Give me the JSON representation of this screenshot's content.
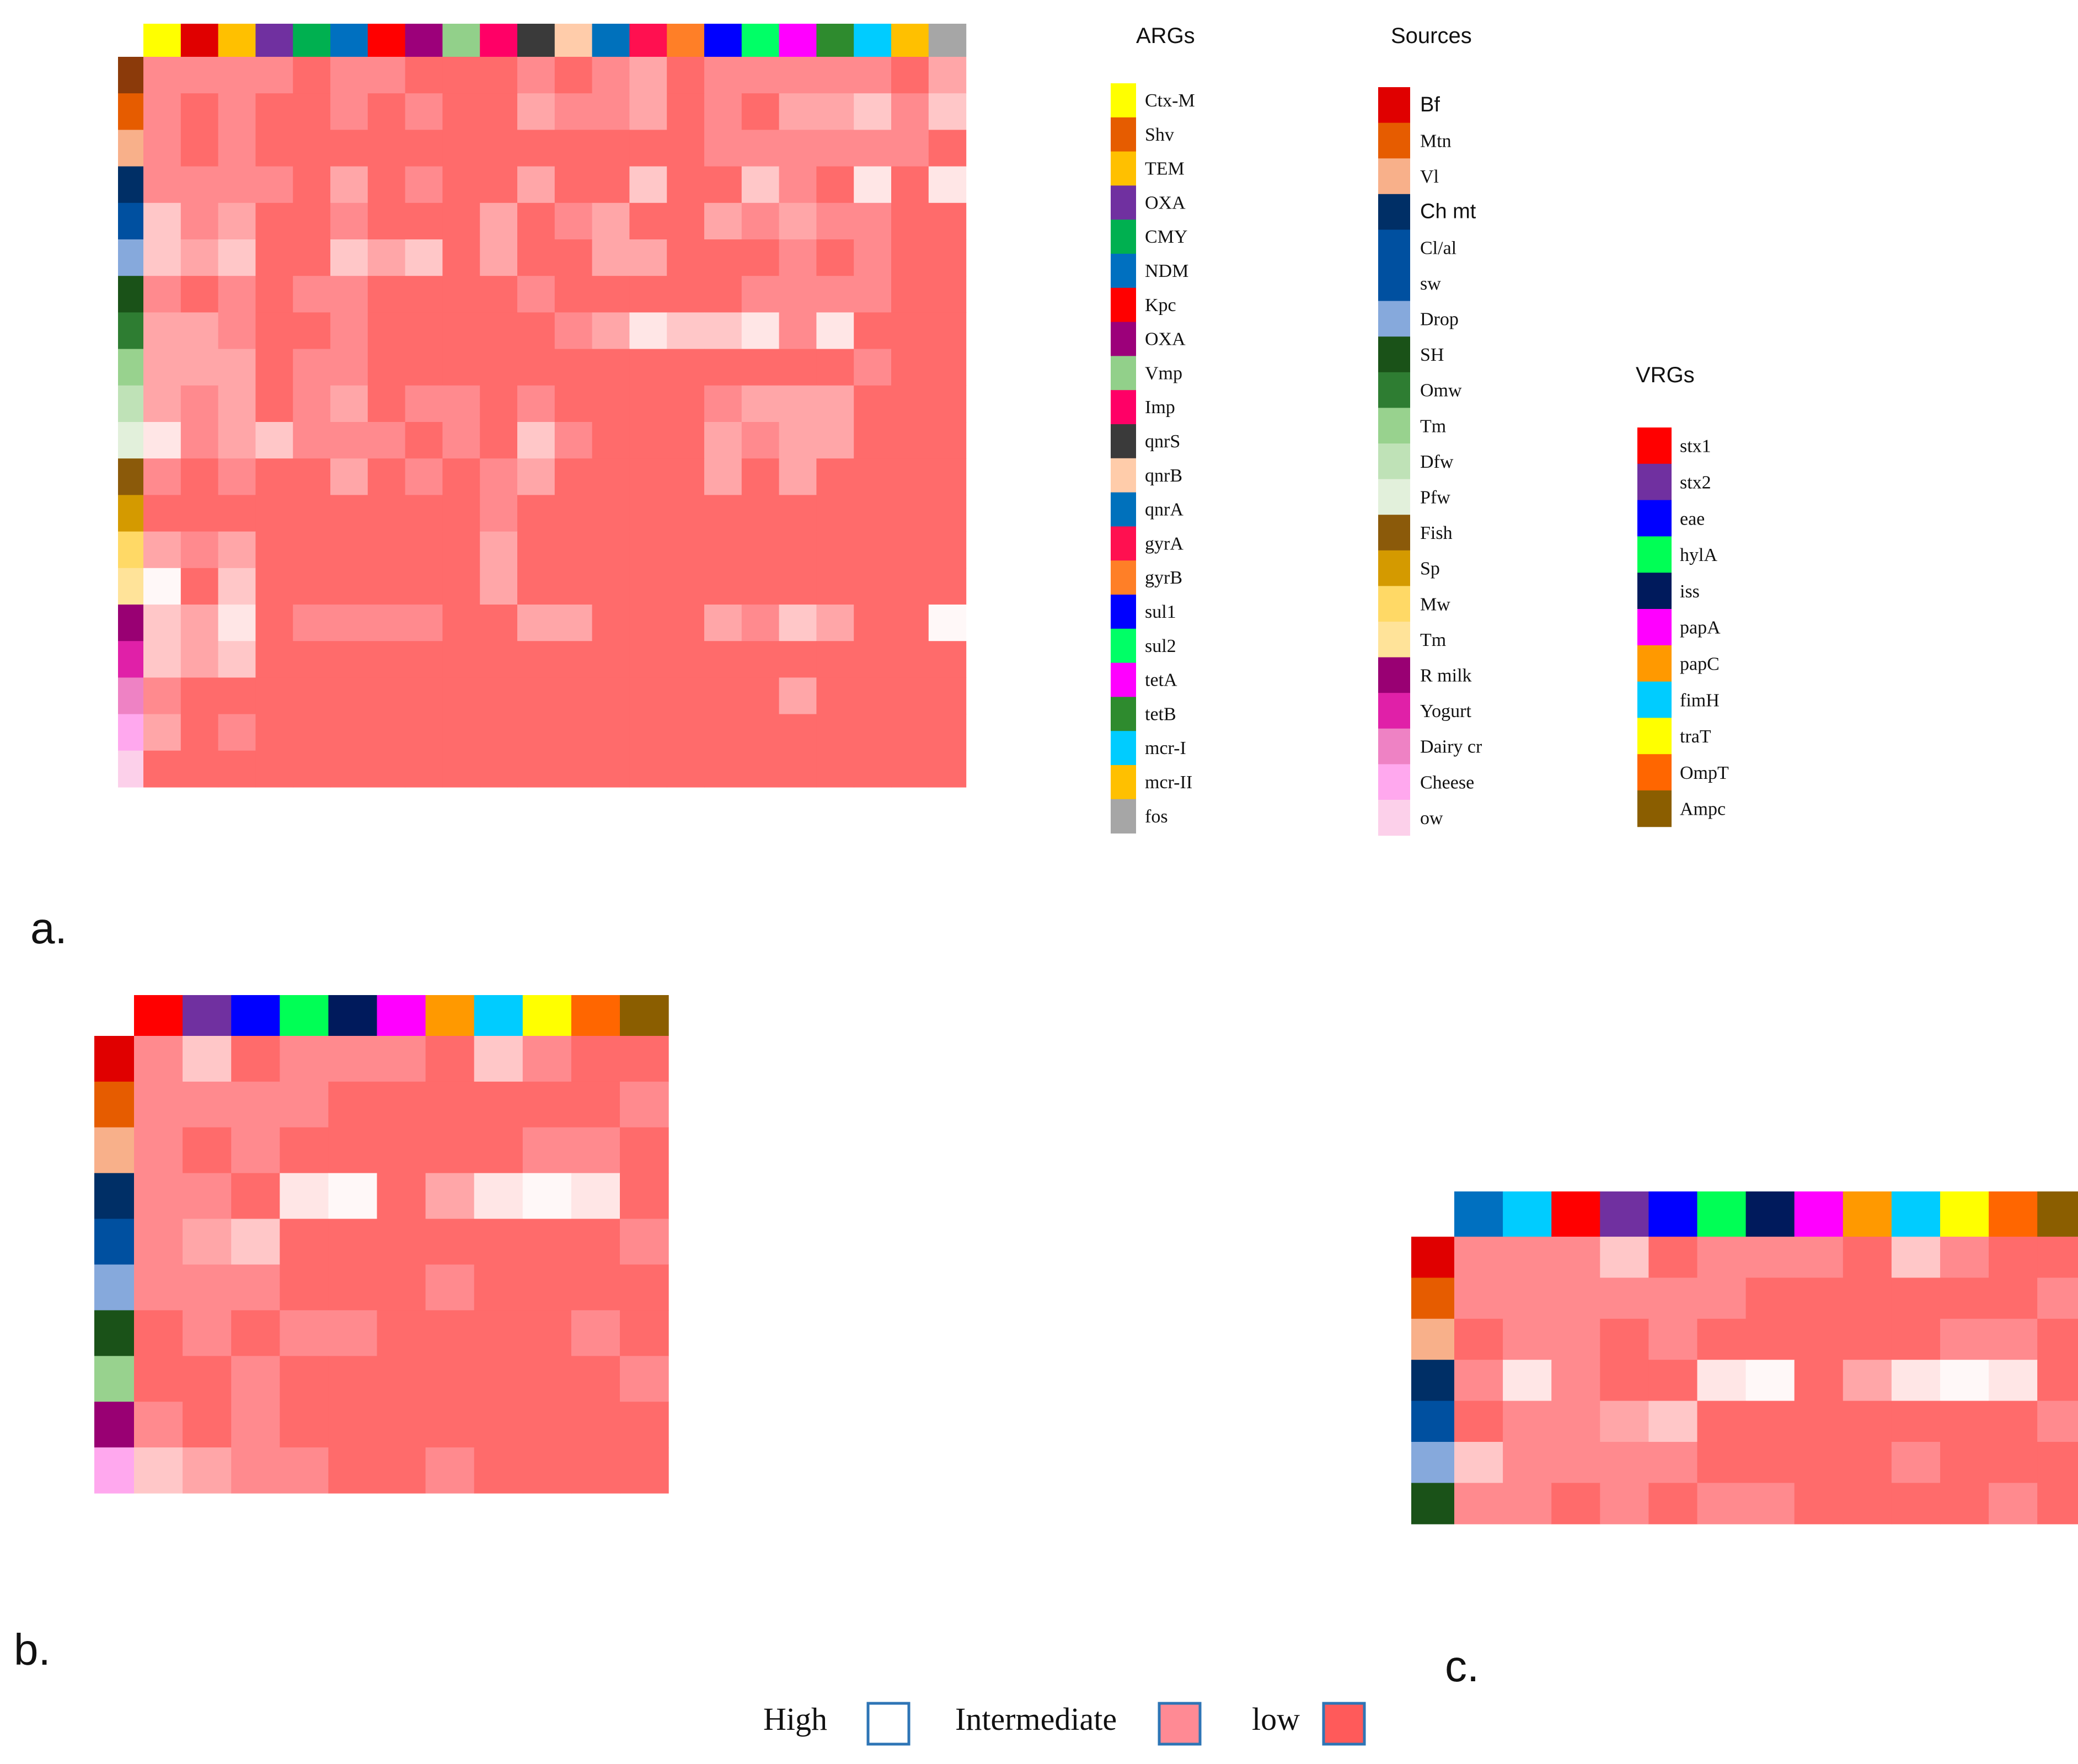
{
  "legends": {
    "args": {
      "title": "ARGs",
      "items": [
        {
          "label": "Ctx-M",
          "color": "#FFFF00"
        },
        {
          "label": "Shv",
          "color": "#E65C00"
        },
        {
          "label": "TEM",
          "color": "#FFC000"
        },
        {
          "label": "OXA",
          "color": "#7030A0"
        },
        {
          "label": "CMY",
          "color": "#00B050"
        },
        {
          "label": "NDM",
          "color": "#0070C0"
        },
        {
          "label": "Kpc",
          "color": "#FF0000"
        },
        {
          "label": "OXA",
          "color": "#9C007A"
        },
        {
          "label": "Vmp",
          "color": "#92D08A"
        },
        {
          "label": "Imp",
          "color": "#FF0066"
        },
        {
          "label": "qnrS",
          "color": "#3A3A3A"
        },
        {
          "label": "qnrB",
          "color": "#FFCCAA"
        },
        {
          "label": "qnrA",
          "color": "#0071BC"
        },
        {
          "label": "gyrA",
          "color": "#FF1050"
        },
        {
          "label": "gyrB",
          "color": "#FF7F27"
        },
        {
          "label": "sul1",
          "color": "#0000FF"
        },
        {
          "label": "sul2",
          "color": "#00FF66"
        },
        {
          "label": "tetA",
          "color": "#FF00FF"
        },
        {
          "label": "tetB",
          "color": "#2E8B2E"
        },
        {
          "label": "mcr-I",
          "color": "#00CCFF"
        },
        {
          "label": "mcr-II",
          "color": "#FFC000"
        },
        {
          "label": "fos",
          "color": "#A6A6A6"
        }
      ]
    },
    "sources": {
      "title": "Sources",
      "items": [
        {
          "label": "Bf",
          "color": "#E00000",
          "font": "sans"
        },
        {
          "label": "Mtn",
          "color": "#E65C00"
        },
        {
          "label": "Vl",
          "color": "#F8B08A"
        },
        {
          "label": "Ch mt",
          "color": "#002F66",
          "font": "sans"
        },
        {
          "label": "Cl/al",
          "color": "#0050A0"
        },
        {
          "label": "sw",
          "color": "#0050A0"
        },
        {
          "label": "Drop",
          "color": "#86A9DC"
        },
        {
          "label": "SH",
          "color": "#1A5218"
        },
        {
          "label": "Omw",
          "color": "#2E7D32"
        },
        {
          "label": "Tm",
          "color": "#98D28E"
        },
        {
          "label": "Dfw",
          "color": "#BFE2B7"
        },
        {
          "label": "Pfw",
          "color": "#E2F0DB"
        },
        {
          "label": "Fish",
          "color": "#8B5A0A"
        },
        {
          "label": "Sp",
          "color": "#D49A00"
        },
        {
          "label": "Mw",
          "color": "#FFD966"
        },
        {
          "label": "Tm",
          "color": "#FFE399"
        },
        {
          "label": "R milk",
          "color": "#990073"
        },
        {
          "label": "Yogurt",
          "color": "#E020A8"
        },
        {
          "label": "Dairy cr",
          "color": "#EE82C4"
        },
        {
          "label": "Cheese",
          "color": "#FFA8EE"
        },
        {
          "label": "ow",
          "color": "#FCD0EA"
        }
      ]
    },
    "vrgs": {
      "title": "VRGs",
      "items": [
        {
          "label": "stx1",
          "color": "#FF0000"
        },
        {
          "label": "stx2",
          "color": "#7030A0"
        },
        {
          "label": "eae",
          "color": "#0000FF"
        },
        {
          "label": "hylA",
          "color": "#00FF55"
        },
        {
          "label": "iss",
          "color": "#001A5C"
        },
        {
          "label": "papA",
          "color": "#FF00FF"
        },
        {
          "label": "papC",
          "color": "#FF9900"
        },
        {
          "label": "fimH",
          "color": "#00CCFF"
        },
        {
          "label": "traT",
          "color": "#FFFF00"
        },
        {
          "label": "OmpT",
          "color": "#FF6600"
        },
        {
          "label": "Ampc",
          "color": "#8B5E00"
        }
      ]
    }
  },
  "panel_labels": {
    "a": "a.",
    "b": "b.",
    "c": "c."
  },
  "key": {
    "items": [
      {
        "label": "High",
        "fill": "#FFFFFF"
      },
      {
        "label": "Intermediate",
        "fill": "#FF8A94"
      },
      {
        "label": "low",
        "fill": "#FF5A5A"
      }
    ],
    "border": "#2E75B6"
  },
  "chart_data": [
    {
      "id": "a",
      "type": "heatmap",
      "levels": {
        "0": "#FF6B6B",
        "1": "#FF8A8E",
        "2": "#FFA6A8",
        "3": "#FFC7C8",
        "4": "#FFE6E6",
        "5": "#FFF8F8"
      },
      "col_colors": [
        "#FFFF00",
        "#E00000",
        "#FFC000",
        "#7030A0",
        "#00B050",
        "#0070C0",
        "#FF0000",
        "#9C007A",
        "#92D08A",
        "#FF0066",
        "#3A3A3A",
        "#FFCCAA",
        "#0071BC",
        "#FF1050",
        "#FF7F27",
        "#0000FF",
        "#00FF66",
        "#FF00FF",
        "#2E8B2E",
        "#00CCFF",
        "#FFC000",
        "#A6A6A6"
      ],
      "row_colors": [
        "#8B3A0A",
        "#E65C00",
        "#F8B08A",
        "#002F66",
        "#0050A0",
        "#86A9DC",
        "#1A5218",
        "#2E7D32",
        "#98D28E",
        "#BFE2B7",
        "#E2F0DB",
        "#8B5A0A",
        "#D49A00",
        "#FFD966",
        "#FFE399",
        "#990073",
        "#E020A8",
        "#EE82C4",
        "#FFA8EE",
        "#FCD0EA"
      ],
      "values": [
        [
          1,
          1,
          1,
          1,
          0,
          1,
          1,
          0,
          0,
          0,
          1,
          0,
          1,
          2,
          0,
          1,
          1,
          1,
          1,
          1,
          0,
          2
        ],
        [
          1,
          0,
          1,
          0,
          0,
          1,
          0,
          1,
          0,
          0,
          2,
          1,
          1,
          2,
          0,
          1,
          0,
          2,
          2,
          3,
          1,
          3
        ],
        [
          1,
          0,
          1,
          0,
          0,
          0,
          0,
          0,
          0,
          0,
          0,
          0,
          0,
          0,
          0,
          1,
          1,
          1,
          1,
          1,
          1,
          0
        ],
        [
          1,
          1,
          1,
          1,
          0,
          2,
          0,
          1,
          0,
          0,
          2,
          0,
          0,
          3,
          0,
          0,
          3,
          1,
          0,
          4,
          0,
          4
        ],
        [
          3,
          1,
          2,
          0,
          0,
          1,
          0,
          0,
          0,
          2,
          0,
          1,
          2,
          0,
          0,
          2,
          1,
          2,
          1,
          1,
          0,
          0
        ],
        [
          3,
          2,
          3,
          0,
          0,
          3,
          2,
          3,
          0,
          2,
          0,
          0,
          2,
          2,
          0,
          0,
          0,
          1,
          0,
          1,
          0,
          0
        ],
        [
          1,
          0,
          1,
          0,
          1,
          1,
          0,
          0,
          0,
          0,
          1,
          0,
          0,
          0,
          0,
          0,
          1,
          1,
          1,
          1,
          0,
          0
        ],
        [
          2,
          2,
          1,
          0,
          0,
          1,
          0,
          0,
          0,
          0,
          0,
          1,
          2,
          4,
          3,
          3,
          4,
          1,
          4,
          0,
          0,
          0
        ],
        [
          2,
          2,
          2,
          0,
          1,
          1,
          0,
          0,
          0,
          0,
          0,
          0,
          0,
          0,
          0,
          0,
          0,
          0,
          0,
          1,
          0,
          0
        ],
        [
          2,
          1,
          2,
          0,
          1,
          2,
          0,
          1,
          1,
          0,
          1,
          0,
          0,
          0,
          0,
          1,
          2,
          2,
          2,
          0,
          0,
          0
        ],
        [
          4,
          1,
          2,
          3,
          1,
          1,
          1,
          0,
          1,
          0,
          3,
          1,
          0,
          0,
          0,
          2,
          1,
          2,
          2,
          0,
          0,
          0
        ],
        [
          1,
          0,
          1,
          0,
          0,
          2,
          0,
          1,
          0,
          1,
          2,
          0,
          0,
          0,
          0,
          2,
          0,
          2,
          0,
          0,
          0,
          0
        ],
        [
          0,
          0,
          0,
          0,
          0,
          0,
          0,
          0,
          0,
          1,
          0,
          0,
          0,
          0,
          0,
          0,
          0,
          0,
          0,
          0,
          0,
          0
        ],
        [
          2,
          1,
          2,
          0,
          0,
          0,
          0,
          0,
          0,
          2,
          0,
          0,
          0,
          0,
          0,
          0,
          0,
          0,
          0,
          0,
          0,
          0
        ],
        [
          5,
          0,
          3,
          0,
          0,
          0,
          0,
          0,
          0,
          2,
          0,
          0,
          0,
          0,
          0,
          0,
          0,
          0,
          0,
          0,
          0,
          0
        ],
        [
          3,
          2,
          4,
          0,
          1,
          1,
          1,
          1,
          0,
          0,
          2,
          2,
          0,
          0,
          0,
          2,
          1,
          3,
          2,
          0,
          0,
          5
        ],
        [
          3,
          2,
          3,
          0,
          0,
          0,
          0,
          0,
          0,
          0,
          0,
          0,
          0,
          0,
          0,
          0,
          0,
          0,
          0,
          0,
          0,
          0
        ],
        [
          1,
          0,
          0,
          0,
          0,
          0,
          0,
          0,
          0,
          0,
          0,
          0,
          0,
          0,
          0,
          0,
          0,
          2,
          0,
          0,
          0,
          0
        ],
        [
          2,
          0,
          1,
          0,
          0,
          0,
          0,
          0,
          0,
          0,
          0,
          0,
          0,
          0,
          0,
          0,
          0,
          0,
          0,
          0,
          0,
          0
        ],
        [
          0,
          0,
          0,
          0,
          0,
          0,
          0,
          0,
          0,
          0,
          0,
          0,
          0,
          0,
          0,
          0,
          0,
          0,
          0,
          0,
          0,
          0
        ]
      ]
    },
    {
      "id": "b",
      "type": "heatmap",
      "levels": {
        "0": "#FF6B6B",
        "1": "#FF8A8E",
        "2": "#FFA6A8",
        "3": "#FFC7C8",
        "4": "#FFE6E6",
        "5": "#FFF8F8"
      },
      "col_colors": [
        "#FF0000",
        "#7030A0",
        "#0000FF",
        "#00FF55",
        "#001A5C",
        "#FF00FF",
        "#FF9900",
        "#00CCFF",
        "#FFFF00",
        "#FF6600",
        "#8B5E00"
      ],
      "row_colors": [
        "#E00000",
        "#E65C00",
        "#F8B08A",
        "#002F66",
        "#0050A0",
        "#86A9DC",
        "#1A5218",
        "#98D28E",
        "#990073",
        "#FFA8EE"
      ],
      "values": [
        [
          1,
          3,
          0,
          1,
          1,
          1,
          0,
          3,
          1,
          0,
          0
        ],
        [
          1,
          1,
          1,
          1,
          0,
          0,
          0,
          0,
          0,
          0,
          1
        ],
        [
          1,
          0,
          1,
          0,
          0,
          0,
          0,
          0,
          1,
          1,
          0
        ],
        [
          1,
          1,
          0,
          4,
          5,
          0,
          2,
          4,
          5,
          4,
          0
        ],
        [
          1,
          2,
          3,
          0,
          0,
          0,
          0,
          0,
          0,
          0,
          1
        ],
        [
          1,
          1,
          1,
          0,
          0,
          0,
          1,
          0,
          0,
          0,
          0
        ],
        [
          0,
          1,
          0,
          1,
          1,
          0,
          0,
          0,
          0,
          1,
          0
        ],
        [
          0,
          0,
          1,
          0,
          0,
          0,
          0,
          0,
          0,
          0,
          1
        ],
        [
          1,
          0,
          1,
          0,
          0,
          0,
          0,
          0,
          0,
          0,
          0
        ],
        [
          3,
          2,
          1,
          1,
          0,
          0,
          1,
          0,
          0,
          0,
          0
        ]
      ]
    },
    {
      "id": "c",
      "type": "heatmap",
      "levels": {
        "0": "#FF6B6B",
        "1": "#FF8A8E",
        "2": "#FFA6A8",
        "3": "#FFC7C8",
        "4": "#FFE6E6",
        "5": "#FFF8F8"
      },
      "col_colors": [
        "#0070C0",
        "#00CCFF",
        "#FF0000",
        "#7030A0",
        "#0000FF",
        "#00FF55",
        "#001A5C",
        "#FF00FF",
        "#FF9900",
        "#00CCFF",
        "#FFFF00",
        "#FF6600",
        "#8B5E00"
      ],
      "row_colors": [
        "#E00000",
        "#E65C00",
        "#F8B08A",
        "#002F66",
        "#0050A0",
        "#86A9DC",
        "#1A5218"
      ],
      "values": [
        [
          1,
          1,
          1,
          3,
          0,
          1,
          1,
          1,
          0,
          3,
          1,
          0,
          0
        ],
        [
          1,
          1,
          1,
          1,
          1,
          1,
          0,
          0,
          0,
          0,
          0,
          0,
          1
        ],
        [
          0,
          1,
          1,
          0,
          1,
          0,
          0,
          0,
          0,
          0,
          1,
          1,
          0
        ],
        [
          1,
          4,
          1,
          0,
          0,
          4,
          5,
          0,
          2,
          4,
          5,
          4,
          0
        ],
        [
          0,
          1,
          1,
          2,
          3,
          0,
          0,
          0,
          0,
          0,
          0,
          0,
          1
        ],
        [
          3,
          1,
          1,
          1,
          1,
          0,
          0,
          0,
          0,
          1,
          0,
          0,
          0
        ],
        [
          1,
          1,
          0,
          1,
          0,
          1,
          1,
          0,
          0,
          0,
          0,
          1,
          0
        ]
      ]
    }
  ]
}
